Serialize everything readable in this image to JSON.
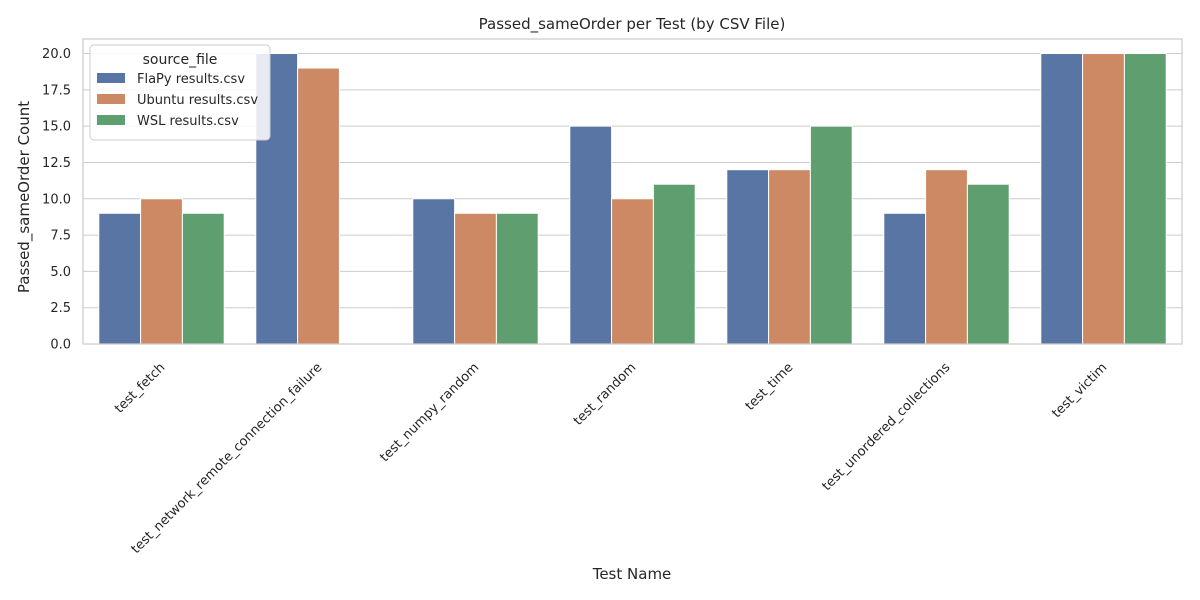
{
  "chart_data": {
    "type": "bar",
    "title": "Passed_sameOrder per Test (by CSV File)",
    "xlabel": "Test Name",
    "ylabel": "Passed_sameOrder Count",
    "categories": [
      "test_fetch",
      "test_network_remote_connection_failure",
      "test_numpy_random",
      "test_random",
      "test_time",
      "test_unordered_collections",
      "test_victim"
    ],
    "series": [
      {
        "name": "FlaPy results.csv",
        "color": "#5875a4",
        "values": [
          9,
          20,
          10,
          15,
          12,
          9,
          20
        ]
      },
      {
        "name": "Ubuntu results.csv",
        "color": "#cc8963",
        "values": [
          10,
          19,
          9,
          10,
          12,
          12,
          20
        ]
      },
      {
        "name": "WSL results.csv",
        "color": "#5f9e6e",
        "values": [
          9,
          null,
          9,
          11,
          15,
          11,
          20
        ]
      }
    ],
    "yticks": [
      "0.0",
      "2.5",
      "5.0",
      "7.5",
      "10.0",
      "12.5",
      "15.0",
      "17.5",
      "20.0"
    ],
    "ylim": [
      0,
      21
    ],
    "grid": true,
    "legend": {
      "title": "source_file",
      "placement": "top-left"
    }
  }
}
